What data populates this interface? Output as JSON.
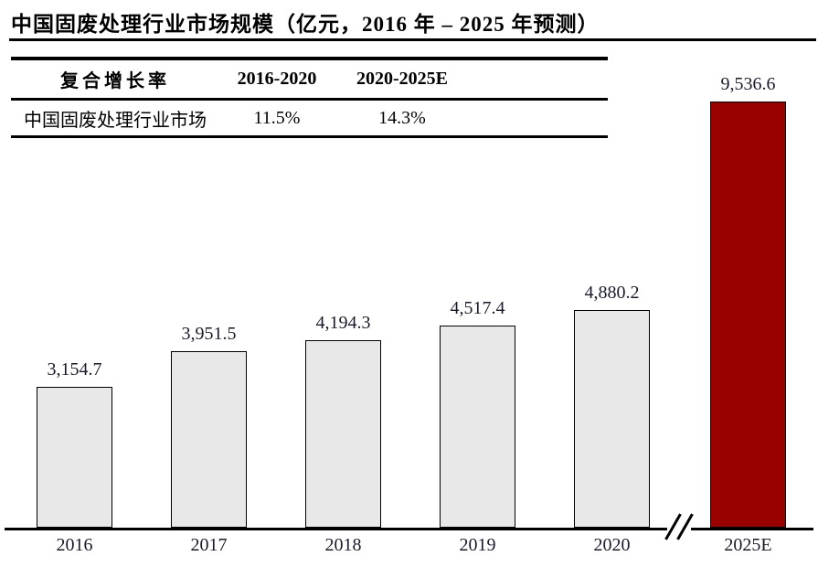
{
  "title": "中国固废处理行业市场规模（亿元，2016 年 – 2025 年预测）",
  "cagr_table": {
    "header": [
      "复合增长率",
      "2016-2020",
      "2020-2025E"
    ],
    "row": [
      "中国固废处理行业市场",
      "11.5%",
      "14.3%"
    ]
  },
  "chart_data": {
    "type": "bar",
    "title": "中国固废处理行业市场规模（亿元，2016 年 – 2025 年预测）",
    "unit": "亿元",
    "categories": [
      "2016",
      "2017",
      "2018",
      "2019",
      "2020",
      "2025E"
    ],
    "values": [
      3154.7,
      3951.5,
      4194.3,
      4517.4,
      4880.2,
      9536.6
    ],
    "value_labels": [
      "3,154.7",
      "3,951.5",
      "4,194.3",
      "4,517.4",
      "4,880.2",
      "9,536.6"
    ],
    "ylim": [
      0,
      9536.6
    ],
    "highlight_index": 5,
    "axis_break_after_index": 4,
    "legend": [],
    "grid": false,
    "cagr_2016_2020": "11.5%",
    "cagr_2020_2025e": "14.3%"
  },
  "colors": {
    "bar_default": "#e8e8e8",
    "bar_highlight": "#990000",
    "bar_border": "#000000",
    "axis": "#000000",
    "chart_text": "#1a1a2e",
    "text": "#000000"
  }
}
